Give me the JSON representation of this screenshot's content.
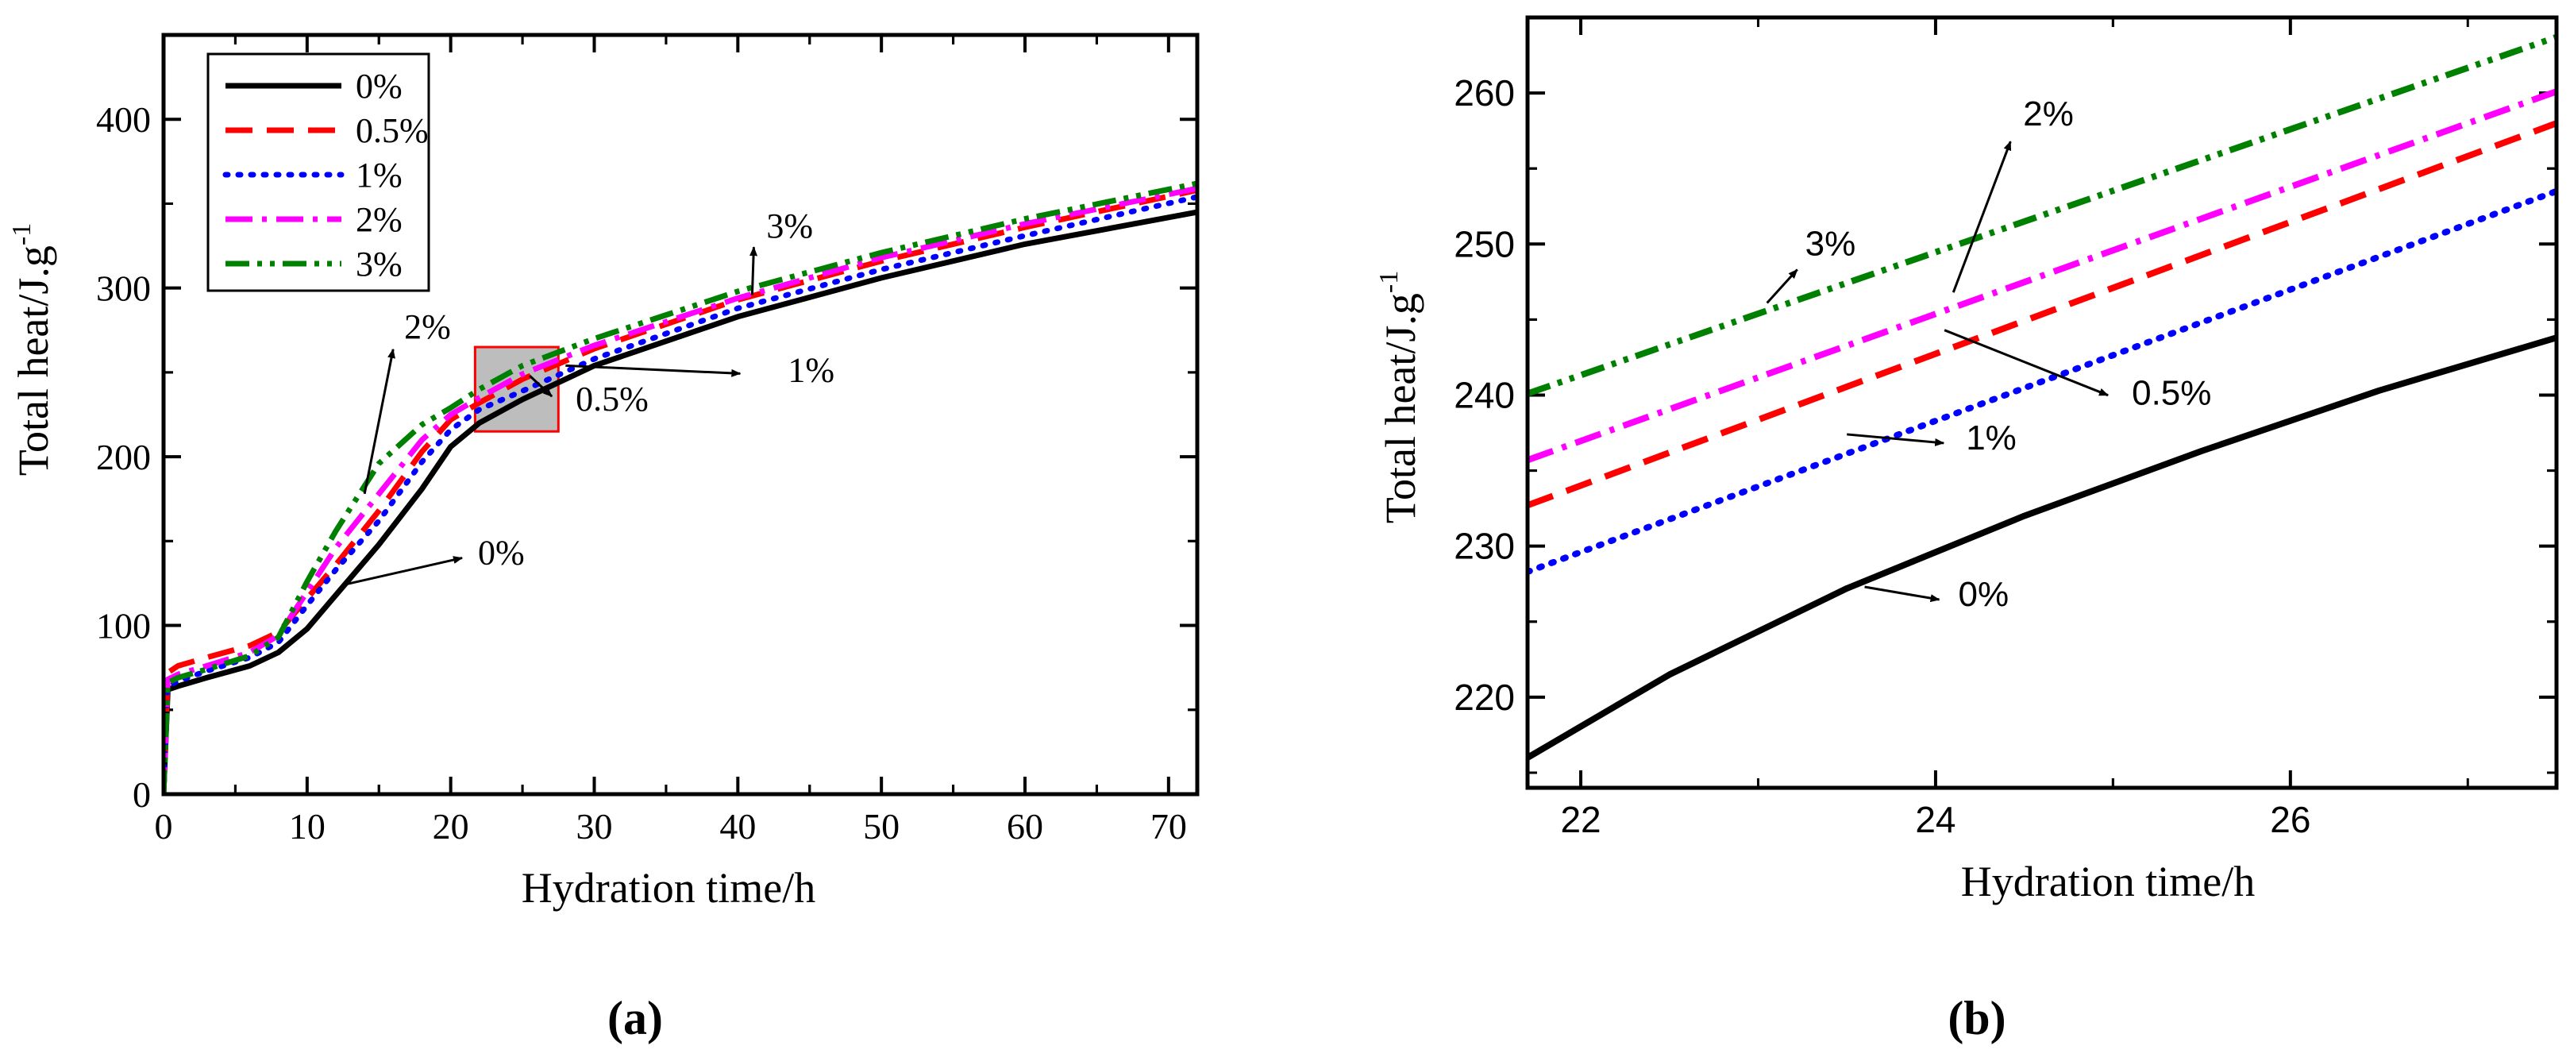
{
  "chart_data": [
    {
      "type": "line",
      "panel_label": "(a)",
      "xlabel": "Hydration time/h",
      "ylabel": "Total heat/J.g",
      "ylabel_superscript": "-1",
      "xlim": [
        0,
        72
      ],
      "ylim": [
        0,
        450
      ],
      "xticks": [
        0,
        10,
        20,
        30,
        40,
        50,
        60,
        70
      ],
      "yticks": [
        0,
        100,
        200,
        300,
        400
      ],
      "legend": {
        "placement": "top-left",
        "entries": [
          "0%",
          "0.5%",
          "1%",
          "2%",
          "3%"
        ]
      },
      "series": [
        {
          "name": "0%",
          "color": "#000000",
          "dash": "solid",
          "x": [
            0,
            0.3,
            1,
            3,
            6,
            8,
            10,
            12,
            15,
            18,
            20,
            22,
            25,
            30,
            40,
            50,
            60,
            72
          ],
          "y": [
            0,
            62,
            64,
            69,
            76,
            84,
            98,
            118,
            148,
            181,
            206,
            220,
            234,
            254,
            283,
            306,
            326,
            345
          ]
        },
        {
          "name": "0.5%",
          "color": "#ff0000",
          "dash": "dashed",
          "x": [
            0,
            0.3,
            1,
            3,
            6,
            8,
            10,
            12,
            15,
            18,
            20,
            22,
            25,
            30,
            40,
            50,
            60,
            72
          ],
          "y": [
            0,
            72,
            76,
            81,
            88,
            96,
            116,
            136,
            168,
            203,
            222,
            232,
            246,
            264,
            293,
            316,
            336,
            358
          ]
        },
        {
          "name": "1%",
          "color": "#0000ff",
          "dash": "dotted",
          "x": [
            0,
            0.3,
            1,
            3,
            6,
            8,
            10,
            12,
            15,
            18,
            20,
            22,
            25,
            30,
            40,
            50,
            60,
            72
          ],
          "y": [
            0,
            64,
            67,
            73,
            81,
            90,
            112,
            133,
            162,
            197,
            216,
            228,
            239,
            258,
            288,
            311,
            331,
            354
          ]
        },
        {
          "name": "2%",
          "color": "#ff00ff",
          "dash": "dash-dot",
          "x": [
            0,
            0.3,
            1,
            3,
            6,
            8,
            10,
            12,
            15,
            18,
            20,
            22,
            25,
            30,
            40,
            50,
            60,
            72
          ],
          "y": [
            0,
            68,
            71,
            76,
            84,
            94,
            120,
            146,
            178,
            210,
            225,
            235,
            249,
            266,
            294,
            318,
            338,
            359
          ]
        },
        {
          "name": "3%",
          "color": "#008000",
          "dash": "dash-dot-dot",
          "x": [
            0,
            0.3,
            1,
            3,
            6,
            8,
            10,
            12,
            15,
            18,
            20,
            22,
            25,
            30,
            40,
            50,
            60,
            72
          ],
          "y": [
            0,
            66,
            69,
            74,
            82,
            93,
            126,
            156,
            196,
            219,
            229,
            240,
            254,
            270,
            298,
            321,
            341,
            362
          ]
        }
      ],
      "annotations": [
        {
          "text": "3%",
          "series": "3%",
          "x": 41,
          "y": 296
        },
        {
          "text": "2%",
          "series": "2%",
          "x": 14,
          "y": 178
        },
        {
          "text": "1%",
          "series": "1%",
          "x": 28,
          "y": 254
        },
        {
          "text": "0.5%",
          "series": "0.5%",
          "x": 25.5,
          "y": 248
        },
        {
          "text": "0%",
          "series": "0%",
          "x": 12.5,
          "y": 124
        }
      ],
      "zoom_box": {
        "x": [
          21.7,
          27.5
        ],
        "y": [
          215,
          265
        ]
      }
    },
    {
      "type": "line",
      "panel_label": "(b)",
      "xlabel": "Hydration time/h",
      "ylabel": "Total heat/J.g",
      "ylabel_superscript": "-1",
      "xlim": [
        21.7,
        27.5
      ],
      "ylim": [
        214,
        265
      ],
      "xticks": [
        22,
        24,
        26
      ],
      "yticks": [
        220,
        230,
        240,
        250,
        260
      ],
      "series": [
        {
          "name": "0%",
          "color": "#000000",
          "dash": "solid",
          "x": [
            21.7,
            22.5,
            23.5,
            24.5,
            25.5,
            26.5,
            27.5
          ],
          "y": [
            216,
            221.5,
            227.2,
            232,
            236.3,
            240.3,
            243.8
          ]
        },
        {
          "name": "0.5%",
          "color": "#ff0000",
          "dash": "dashed",
          "x": [
            21.7,
            27.5
          ],
          "y": [
            232.7,
            258
          ]
        },
        {
          "name": "1%",
          "color": "#0000ff",
          "dash": "dotted",
          "x": [
            21.7,
            27.5
          ],
          "y": [
            228.3,
            253.5
          ]
        },
        {
          "name": "2%",
          "color": "#ff00ff",
          "dash": "dash-dot",
          "x": [
            21.7,
            27.5
          ],
          "y": [
            235.7,
            260.1
          ]
        },
        {
          "name": "3%",
          "color": "#008000",
          "dash": "dash-dot-dot",
          "x": [
            21.7,
            27.5
          ],
          "y": [
            240.1,
            263.7
          ]
        }
      ],
      "annotations": [
        {
          "text": "3%",
          "series": "3%",
          "x": 23.05,
          "y": 246.1
        },
        {
          "text": "2%",
          "series": "2%",
          "x": 24.1,
          "y": 246.8
        },
        {
          "text": "0.5%",
          "series": "0.5%",
          "x": 24.05,
          "y": 244.3
        },
        {
          "text": "1%",
          "series": "1%",
          "x": 23.5,
          "y": 237.4
        },
        {
          "text": "0%",
          "series": "0%",
          "x": 23.6,
          "y": 227.3
        }
      ]
    }
  ]
}
